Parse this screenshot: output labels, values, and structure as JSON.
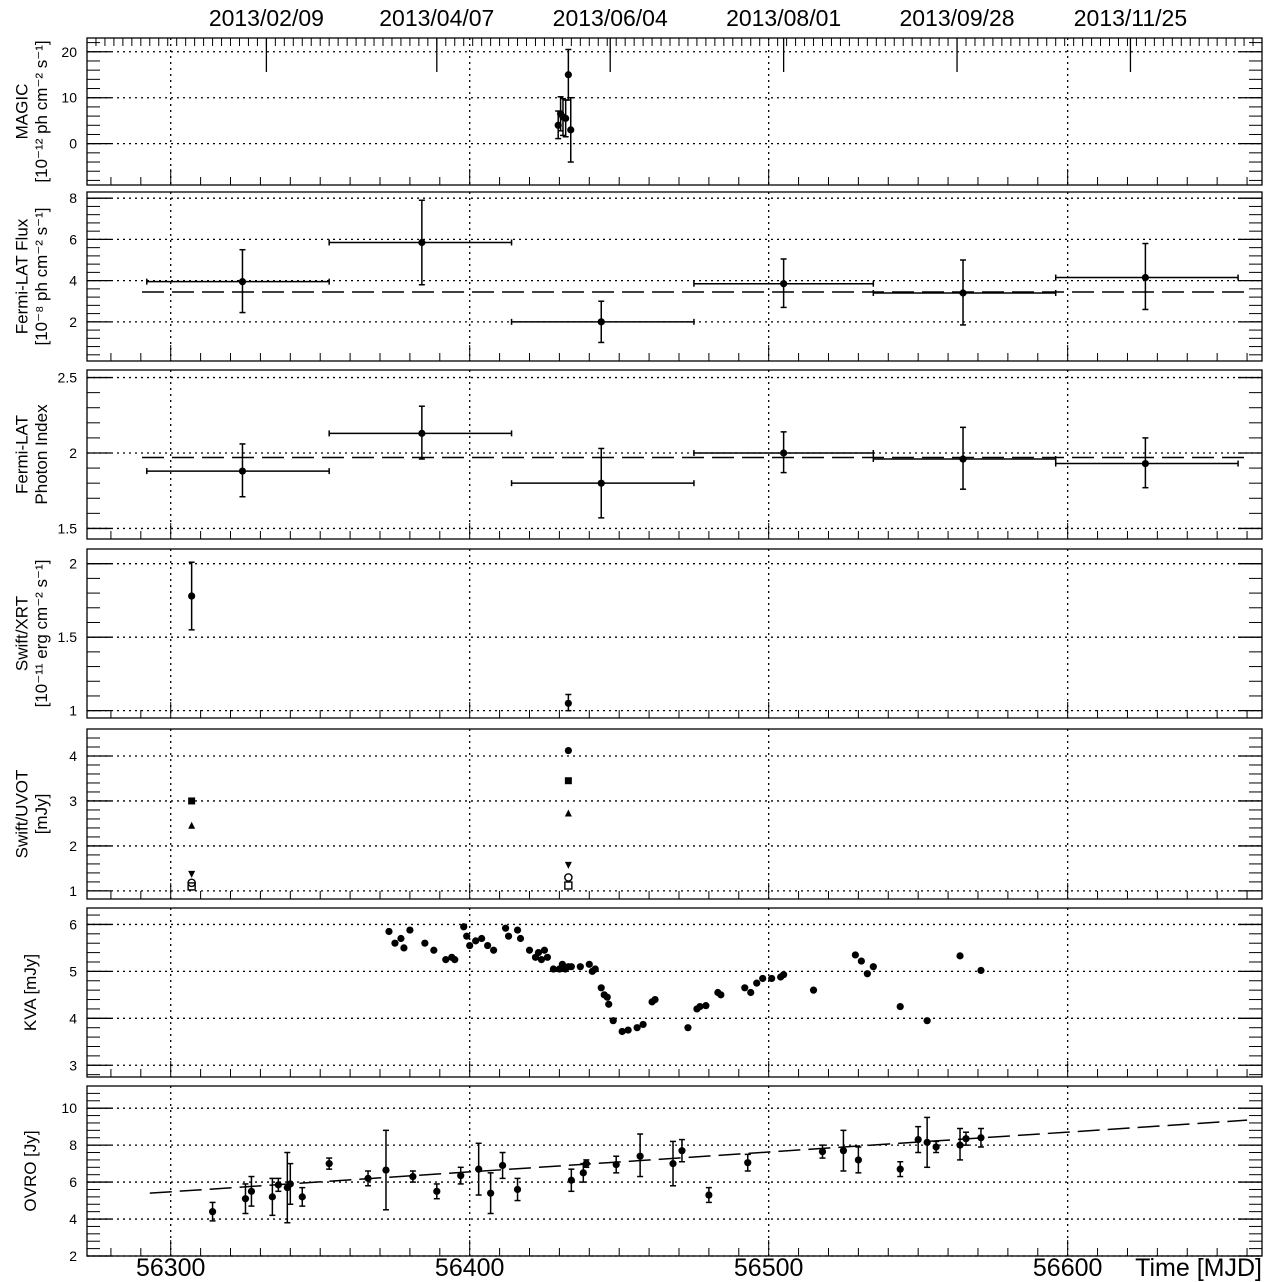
{
  "chart_data": {
    "type": "scatter",
    "x_axis": {
      "label": "Time [MJD]",
      "xlim": [
        56272,
        56665
      ],
      "major_ticks": [
        56300,
        56400,
        56500,
        56600
      ],
      "tick_labels": [
        "56300",
        "56400",
        "56500",
        "56600"
      ]
    },
    "top_axis": {
      "date_ticks": [
        {
          "mjd": 56332,
          "label": "2013/02/09"
        },
        {
          "mjd": 56389,
          "label": "2013/04/07"
        },
        {
          "mjd": 56447,
          "label": "2013/06/04"
        },
        {
          "mjd": 56505,
          "label": "2013/08/01"
        },
        {
          "mjd": 56563,
          "label": "2013/09/28"
        },
        {
          "mjd": 56621,
          "label": "2013/11/25"
        }
      ]
    },
    "vertical_grid_mjd": [
      56300,
      56400,
      56500,
      56600
    ],
    "panels": [
      {
        "id": "magic",
        "ylabel": [
          "MAGIC",
          "[10⁻¹² ph cm⁻² s⁻¹]"
        ],
        "ylim": [
          -9,
          23
        ],
        "yticks": [
          0,
          10,
          20
        ],
        "ytick_labels": [
          "0",
          "10",
          "20"
        ],
        "points": [
          {
            "x": 56429.6,
            "y": 4,
            "ylo": 1.1,
            "yhi": 7.1
          },
          {
            "x": 56430.4,
            "y": 6.5,
            "ylo": 2.8,
            "yhi": 10.2
          },
          {
            "x": 56431.2,
            "y": 5.8,
            "ylo": 1.8,
            "yhi": 9.8
          },
          {
            "x": 56432.1,
            "y": 5.5,
            "ylo": 1.5,
            "yhi": 9.5
          },
          {
            "x": 56433.0,
            "y": 15,
            "ylo": 9.5,
            "yhi": 20.5
          },
          {
            "x": 56433.8,
            "y": 3,
            "ylo": -4,
            "yhi": 10
          }
        ]
      },
      {
        "id": "fermi_flux",
        "ylabel": [
          "Fermi-LAT Flux",
          "[10⁻⁸ ph cm⁻² s⁻¹]"
        ],
        "ylim": [
          0.1,
          8.3
        ],
        "yticks": [
          2,
          4,
          6,
          8
        ],
        "ytick_labels": [
          "2",
          "4",
          "6",
          "8"
        ],
        "reference_line": 3.45,
        "points": [
          {
            "x": 56324,
            "xlo": 56292,
            "xhi": 56353,
            "y": 3.95,
            "ylo": 2.45,
            "yhi": 5.5
          },
          {
            "x": 56384,
            "xlo": 56353,
            "xhi": 56414,
            "y": 5.85,
            "ylo": 3.8,
            "yhi": 7.9
          },
          {
            "x": 56444,
            "xlo": 56414,
            "xhi": 56475,
            "y": 2.0,
            "ylo": 1.0,
            "yhi": 3.0
          },
          {
            "x": 56505,
            "xlo": 56475,
            "xhi": 56535,
            "y": 3.85,
            "ylo": 2.7,
            "yhi": 5.05
          },
          {
            "x": 56565,
            "xlo": 56535,
            "xhi": 56596,
            "y": 3.4,
            "ylo": 1.85,
            "yhi": 5.0
          },
          {
            "x": 56626,
            "xlo": 56596,
            "xhi": 56657,
            "y": 4.15,
            "ylo": 2.6,
            "yhi": 5.8
          }
        ]
      },
      {
        "id": "fermi_index",
        "ylabel": [
          "Fermi-LAT",
          "Photon Index"
        ],
        "ylim": [
          1.43,
          2.55
        ],
        "yticks": [
          1.5,
          2,
          2.5
        ],
        "ytick_labels": [
          "1.5",
          "2",
          "2.5"
        ],
        "reference_line": 1.97,
        "points": [
          {
            "x": 56324,
            "xlo": 56292,
            "xhi": 56353,
            "y": 1.88,
            "ylo": 1.71,
            "yhi": 2.06
          },
          {
            "x": 56384,
            "xlo": 56353,
            "xhi": 56414,
            "y": 2.13,
            "ylo": 1.96,
            "yhi": 2.31
          },
          {
            "x": 56444,
            "xlo": 56414,
            "xhi": 56475,
            "y": 1.8,
            "ylo": 1.57,
            "yhi": 2.03
          },
          {
            "x": 56505,
            "xlo": 56475,
            "xhi": 56535,
            "y": 2.0,
            "ylo": 1.87,
            "yhi": 2.14
          },
          {
            "x": 56565,
            "xlo": 56535,
            "xhi": 56596,
            "y": 1.96,
            "ylo": 1.76,
            "yhi": 2.17
          },
          {
            "x": 56626,
            "xlo": 56596,
            "xhi": 56657,
            "y": 1.93,
            "ylo": 1.77,
            "yhi": 2.1
          }
        ]
      },
      {
        "id": "swift_xrt",
        "ylabel": [
          "Swift/XRT",
          "[10⁻¹¹ erg cm⁻² s⁻¹]"
        ],
        "ylim": [
          0.95,
          2.1
        ],
        "yticks": [
          1,
          1.5,
          2
        ],
        "ytick_labels": [
          "1",
          "1.5",
          "2"
        ],
        "points": [
          {
            "x": 56307,
            "y": 1.78,
            "ylo": 1.55,
            "yhi": 2.01
          },
          {
            "x": 56433,
            "y": 1.05,
            "ylo": 1.0,
            "yhi": 1.11
          }
        ]
      },
      {
        "id": "swift_uvot",
        "ylabel": [
          "Swift/UVOT",
          "[mJy]"
        ],
        "ylim": [
          0.82,
          4.6
        ],
        "yticks": [
          1,
          2,
          3,
          4
        ],
        "ytick_labels": [
          "1",
          "2",
          "3",
          "4"
        ],
        "points": [
          {
            "x": 56307,
            "y": 3.0,
            "marker": "square"
          },
          {
            "x": 56307,
            "y": 2.45,
            "marker": "triangle-up"
          },
          {
            "x": 56307,
            "y": 1.38,
            "marker": "triangle-down"
          },
          {
            "x": 56307,
            "y": 1.18,
            "marker": "open-circle"
          },
          {
            "x": 56307,
            "y": 1.1,
            "marker": "open-square"
          },
          {
            "x": 56433,
            "y": 4.12,
            "marker": "circle"
          },
          {
            "x": 56433,
            "y": 3.45,
            "marker": "square"
          },
          {
            "x": 56433,
            "y": 2.72,
            "marker": "triangle-up"
          },
          {
            "x": 56433,
            "y": 1.58,
            "marker": "triangle-down"
          },
          {
            "x": 56433,
            "y": 1.3,
            "marker": "open-circle"
          },
          {
            "x": 56433,
            "y": 1.12,
            "marker": "open-square"
          }
        ]
      },
      {
        "id": "kva",
        "ylabel": [
          "KVA [mJy]"
        ],
        "ylim": [
          2.75,
          6.35
        ],
        "yticks": [
          3,
          4,
          5,
          6
        ],
        "ytick_labels": [
          "3",
          "4",
          "5",
          "6"
        ],
        "points": [
          {
            "x": 56373,
            "y": 5.85
          },
          {
            "x": 56375,
            "y": 5.6
          },
          {
            "x": 56377,
            "y": 5.7
          },
          {
            "x": 56378,
            "y": 5.5
          },
          {
            "x": 56380,
            "y": 5.88
          },
          {
            "x": 56385,
            "y": 5.6
          },
          {
            "x": 56388,
            "y": 5.45
          },
          {
            "x": 56392,
            "y": 5.25
          },
          {
            "x": 56394,
            "y": 5.3
          },
          {
            "x": 56395,
            "y": 5.25
          },
          {
            "x": 56398,
            "y": 5.95
          },
          {
            "x": 56399,
            "y": 5.75
          },
          {
            "x": 56400,
            "y": 5.55
          },
          {
            "x": 56402,
            "y": 5.65
          },
          {
            "x": 56404,
            "y": 5.7
          },
          {
            "x": 56406,
            "y": 5.55
          },
          {
            "x": 56408,
            "y": 5.45
          },
          {
            "x": 56412,
            "y": 5.92
          },
          {
            "x": 56413,
            "y": 5.75
          },
          {
            "x": 56416,
            "y": 5.88
          },
          {
            "x": 56417,
            "y": 5.7
          },
          {
            "x": 56420,
            "y": 5.45
          },
          {
            "x": 56422,
            "y": 5.3
          },
          {
            "x": 56423,
            "y": 5.4
          },
          {
            "x": 56424,
            "y": 5.25
          },
          {
            "x": 56425,
            "y": 5.45
          },
          {
            "x": 56426,
            "y": 5.3
          },
          {
            "x": 56428,
            "y": 5.05
          },
          {
            "x": 56430,
            "y": 5.05
          },
          {
            "x": 56431,
            "y": 5.15
          },
          {
            "x": 56432,
            "y": 5.05
          },
          {
            "x": 56433,
            "y": 5.1
          },
          {
            "x": 56434,
            "y": 5.1
          },
          {
            "x": 56437,
            "y": 5.1
          },
          {
            "x": 56440,
            "y": 5.15
          },
          {
            "x": 56441,
            "y": 5.0
          },
          {
            "x": 56442,
            "y": 5.05
          },
          {
            "x": 56444,
            "y": 4.65
          },
          {
            "x": 56445,
            "y": 4.5
          },
          {
            "x": 56446,
            "y": 4.45
          },
          {
            "x": 56446.5,
            "y": 4.3
          },
          {
            "x": 56448,
            "y": 3.95
          },
          {
            "x": 56451,
            "y": 3.72
          },
          {
            "x": 56453,
            "y": 3.75
          },
          {
            "x": 56456,
            "y": 3.8
          },
          {
            "x": 56458,
            "y": 3.87
          },
          {
            "x": 56461,
            "y": 4.35
          },
          {
            "x": 56462,
            "y": 4.4
          },
          {
            "x": 56473,
            "y": 3.8
          },
          {
            "x": 56476,
            "y": 4.2
          },
          {
            "x": 56477,
            "y": 4.25
          },
          {
            "x": 56479,
            "y": 4.27
          },
          {
            "x": 56483,
            "y": 4.55
          },
          {
            "x": 56484,
            "y": 4.5
          },
          {
            "x": 56492,
            "y": 4.65
          },
          {
            "x": 56494,
            "y": 4.55
          },
          {
            "x": 56496,
            "y": 4.75
          },
          {
            "x": 56498,
            "y": 4.85
          },
          {
            "x": 56501,
            "y": 4.85
          },
          {
            "x": 56504,
            "y": 4.88
          },
          {
            "x": 56505,
            "y": 4.93
          },
          {
            "x": 56515,
            "y": 4.6
          },
          {
            "x": 56529,
            "y": 5.35
          },
          {
            "x": 56531,
            "y": 5.22
          },
          {
            "x": 56533,
            "y": 4.95
          },
          {
            "x": 56535,
            "y": 5.1
          },
          {
            "x": 56544,
            "y": 4.25
          },
          {
            "x": 56553,
            "y": 3.95
          },
          {
            "x": 56564,
            "y": 5.33
          },
          {
            "x": 56571,
            "y": 5.02
          }
        ]
      },
      {
        "id": "ovro",
        "ylabel": [
          "OVRO [Jy]"
        ],
        "ylim": [
          2,
          11.2
        ],
        "yticks": [
          2,
          4,
          6,
          8,
          10
        ],
        "ytick_labels": [
          "2",
          "4",
          "6",
          "8",
          "10"
        ],
        "trend_line": {
          "x": [
            56293,
            56660
          ],
          "y": [
            5.4,
            9.35
          ]
        },
        "points": [
          {
            "x": 56314,
            "y": 4.4,
            "ylo": 3.9,
            "yhi": 4.9
          },
          {
            "x": 56325,
            "y": 5.1,
            "ylo": 4.3,
            "yhi": 5.9
          },
          {
            "x": 56327,
            "y": 5.5,
            "ylo": 4.7,
            "yhi": 6.3
          },
          {
            "x": 56334,
            "y": 5.2,
            "ylo": 4.2,
            "yhi": 6.2
          },
          {
            "x": 56336,
            "y": 5.85,
            "ylo": 5.5,
            "yhi": 6.2
          },
          {
            "x": 56339,
            "y": 5.7,
            "ylo": 3.8,
            "yhi": 7.6
          },
          {
            "x": 56340,
            "y": 5.9,
            "ylo": 4.8,
            "yhi": 7.0
          },
          {
            "x": 56344,
            "y": 5.2,
            "ylo": 4.7,
            "yhi": 5.7
          },
          {
            "x": 56353,
            "y": 7.0,
            "ylo": 6.7,
            "yhi": 7.3
          },
          {
            "x": 56366,
            "y": 6.2,
            "ylo": 5.8,
            "yhi": 6.6
          },
          {
            "x": 56372,
            "y": 6.65,
            "ylo": 4.5,
            "yhi": 8.8
          },
          {
            "x": 56381,
            "y": 6.3,
            "ylo": 6.0,
            "yhi": 6.6
          },
          {
            "x": 56389,
            "y": 5.5,
            "ylo": 5.1,
            "yhi": 5.9
          },
          {
            "x": 56397,
            "y": 6.35,
            "ylo": 5.9,
            "yhi": 6.8
          },
          {
            "x": 56403,
            "y": 6.7,
            "ylo": 5.3,
            "yhi": 8.1
          },
          {
            "x": 56407,
            "y": 5.4,
            "ylo": 4.3,
            "yhi": 6.5
          },
          {
            "x": 56411,
            "y": 6.9,
            "ylo": 6.2,
            "yhi": 7.6
          },
          {
            "x": 56416,
            "y": 5.6,
            "ylo": 5.0,
            "yhi": 6.2
          },
          {
            "x": 56434,
            "y": 6.1,
            "ylo": 5.5,
            "yhi": 6.7
          },
          {
            "x": 56438,
            "y": 6.5,
            "ylo": 6.0,
            "yhi": 7.0
          },
          {
            "x": 56439,
            "y": 7.0,
            "ylo": 6.8,
            "yhi": 7.2
          },
          {
            "x": 56449,
            "y": 6.95,
            "ylo": 6.5,
            "yhi": 7.4
          },
          {
            "x": 56457,
            "y": 7.4,
            "ylo": 6.3,
            "yhi": 8.6
          },
          {
            "x": 56468,
            "y": 7.0,
            "ylo": 5.8,
            "yhi": 8.2
          },
          {
            "x": 56471,
            "y": 7.7,
            "ylo": 7.1,
            "yhi": 8.3
          },
          {
            "x": 56480,
            "y": 5.3,
            "ylo": 4.9,
            "yhi": 5.7
          },
          {
            "x": 56493,
            "y": 7.05,
            "ylo": 6.6,
            "yhi": 7.5
          },
          {
            "x": 56518,
            "y": 7.65,
            "ylo": 7.3,
            "yhi": 8.0
          },
          {
            "x": 56525,
            "y": 7.7,
            "ylo": 6.6,
            "yhi": 8.8
          },
          {
            "x": 56530,
            "y": 7.2,
            "ylo": 6.5,
            "yhi": 7.9
          },
          {
            "x": 56544,
            "y": 6.7,
            "ylo": 6.3,
            "yhi": 7.1
          },
          {
            "x": 56550,
            "y": 8.3,
            "ylo": 7.6,
            "yhi": 9.0
          },
          {
            "x": 56553,
            "y": 8.15,
            "ylo": 6.8,
            "yhi": 9.5
          },
          {
            "x": 56556,
            "y": 7.9,
            "ylo": 7.6,
            "yhi": 8.2
          },
          {
            "x": 56564,
            "y": 8.0,
            "ylo": 7.2,
            "yhi": 8.9
          },
          {
            "x": 56566,
            "y": 8.35,
            "ylo": 8.0,
            "yhi": 8.7
          },
          {
            "x": 56571,
            "y": 8.4,
            "ylo": 7.9,
            "yhi": 8.9
          }
        ]
      }
    ]
  }
}
